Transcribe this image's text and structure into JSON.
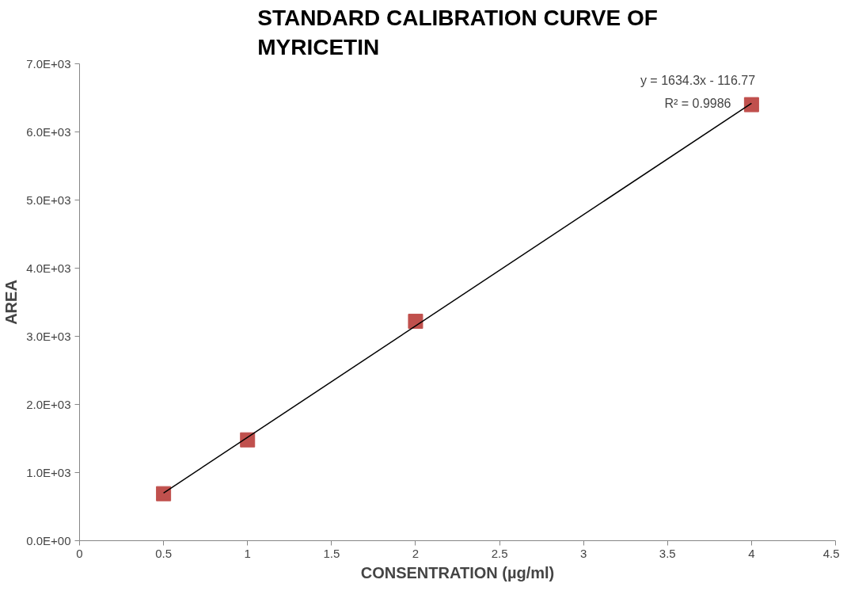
{
  "chart_data": {
    "type": "scatter",
    "title": "STANDARD CALIBRATION CURVE OF MYRICETIN",
    "xlabel": "CONSENTRATION (µg/ml)",
    "ylabel": "AREA",
    "x": [
      0.5,
      1,
      2,
      4
    ],
    "series": [
      {
        "color": "#c0504d",
        "marker": "square",
        "values": [
          690,
          1480,
          3220,
          6400
        ]
      },
      {
        "type": "line",
        "color": "#000000",
        "x": [
          0.5,
          4
        ],
        "values": [
          700,
          6420
        ],
        "marker": "none",
        "line_style": "solid"
      }
    ],
    "annotations": [
      "y = 1634.3x - 116.77",
      "R² = 0.9986"
    ],
    "xlim": [
      0,
      4.5
    ],
    "xticks": [
      0,
      0.5,
      1,
      1.5,
      2,
      2.5,
      3,
      3.5,
      4,
      4.5
    ],
    "ylim": [
      0,
      7000
    ],
    "yticks": [
      {
        "value": 0,
        "label": "0.0E+00"
      },
      {
        "value": 1000,
        "label": "1.0E+03"
      },
      {
        "value": 2000,
        "label": "2.0E+03"
      },
      {
        "value": 3000,
        "label": "3.0E+03"
      },
      {
        "value": 4000,
        "label": "4.0E+03"
      },
      {
        "value": 5000,
        "label": "5.0E+03"
      },
      {
        "value": 6000,
        "label": "6.0E+03"
      },
      {
        "value": 7000,
        "label": "7.0E+03"
      }
    ],
    "grid": false
  }
}
